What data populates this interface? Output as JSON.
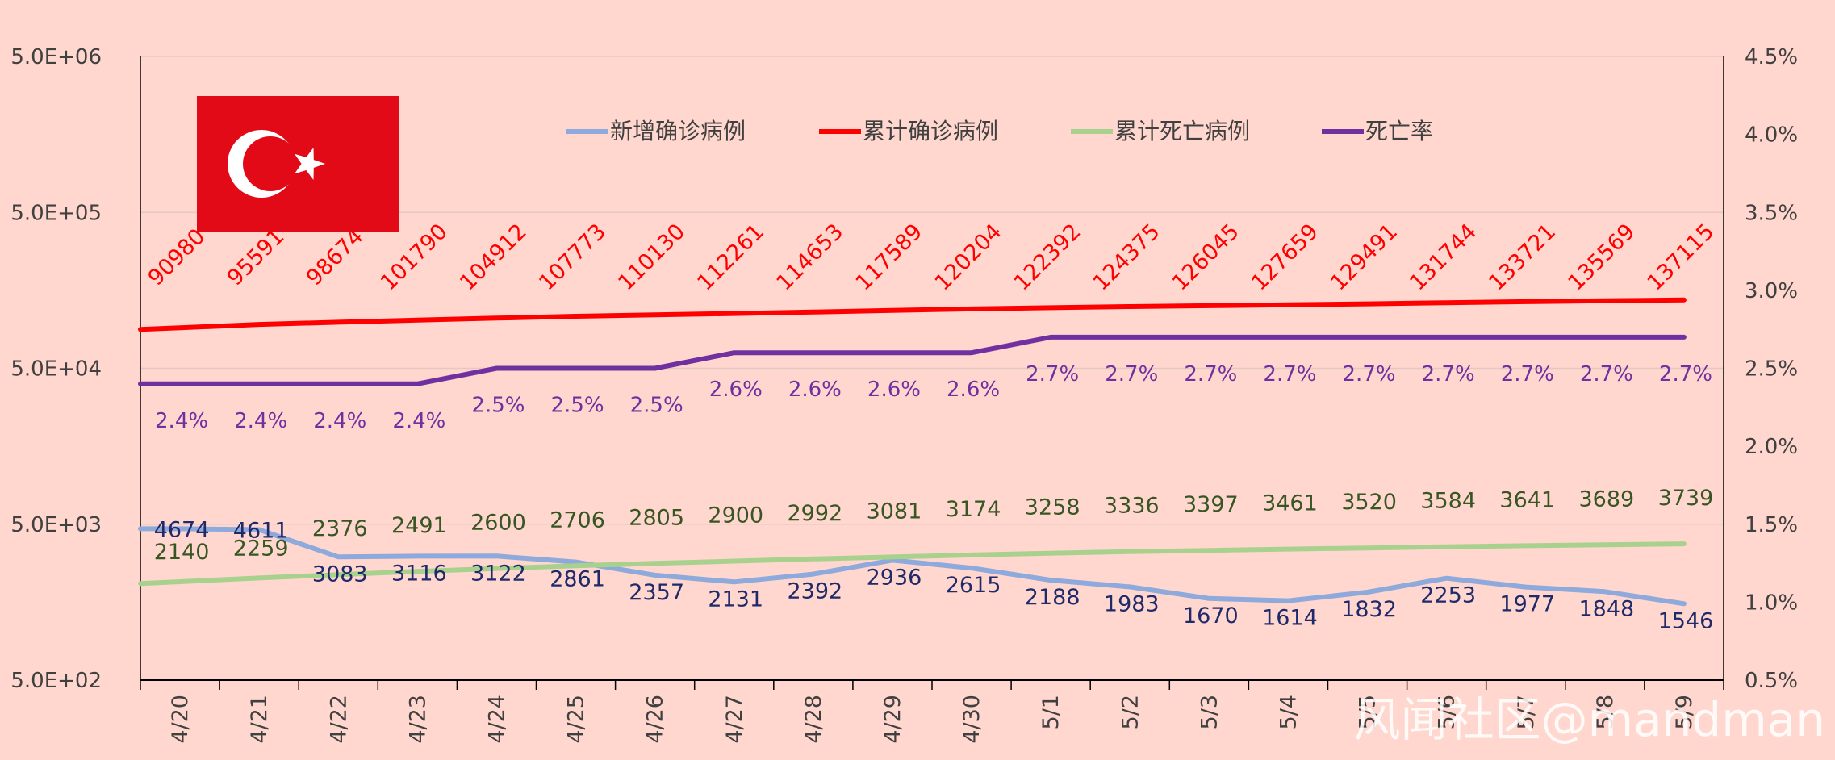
{
  "chart_data": {
    "type": "line",
    "x": [
      "4/20",
      "4/21",
      "4/22",
      "4/23",
      "4/24",
      "4/25",
      "4/26",
      "4/27",
      "4/28",
      "4/29",
      "4/30",
      "5/1",
      "5/2",
      "5/3",
      "5/4",
      "5/5",
      "5/6",
      "5/7",
      "5/8",
      "5/9"
    ],
    "y_left": {
      "scale": "log",
      "range": [
        500,
        5000000
      ],
      "ticks": [
        "5.0E+02",
        "5.0E+03",
        "5.0E+04",
        "5.0E+05",
        "5.0E+06"
      ]
    },
    "y_right": {
      "scale": "linear",
      "range": [
        0.005,
        0.045
      ],
      "ticks": [
        "0.5%",
        "1.0%",
        "1.5%",
        "2.0%",
        "2.5%",
        "3.0%",
        "3.5%",
        "4.0%",
        "4.5%"
      ]
    },
    "legend_position": "top-center",
    "series": [
      {
        "name": "新增确诊病例",
        "axis": "left",
        "color": "#8EA9DB",
        "label_color": "#1F2A6B",
        "values": [
          4674,
          4611,
          3083,
          3116,
          3122,
          2861,
          2357,
          2131,
          2392,
          2936,
          2615,
          2188,
          1983,
          1670,
          1614,
          1832,
          2253,
          1977,
          1848,
          1546
        ]
      },
      {
        "name": "累计确诊病例",
        "axis": "left",
        "color": "#FF0000",
        "label_color": "#FF0000",
        "values": [
          90980,
          95591,
          98674,
          101790,
          104912,
          107773,
          110130,
          112261,
          114653,
          117589,
          120204,
          122392,
          124375,
          126045,
          127659,
          129491,
          131744,
          133721,
          135569,
          137115
        ]
      },
      {
        "name": "累计死亡病例",
        "axis": "left",
        "color": "#A9D18E",
        "label_color": "#375623",
        "values": [
          2140,
          2259,
          2376,
          2491,
          2600,
          2706,
          2805,
          2900,
          2992,
          3081,
          3174,
          3258,
          3336,
          3397,
          3461,
          3520,
          3584,
          3641,
          3689,
          3739
        ]
      },
      {
        "name": "死亡率",
        "axis": "right",
        "color": "#7030A0",
        "label_color": "#7030A0",
        "values": [
          0.024,
          0.024,
          0.024,
          0.024,
          0.025,
          0.025,
          0.025,
          0.026,
          0.026,
          0.026,
          0.026,
          0.027,
          0.027,
          0.027,
          0.027,
          0.027,
          0.027,
          0.027,
          0.027,
          0.027
        ],
        "labels": [
          "2.4%",
          "2.4%",
          "2.4%",
          "2.4%",
          "2.5%",
          "2.5%",
          "2.5%",
          "2.6%",
          "2.6%",
          "2.6%",
          "2.6%",
          "2.7%",
          "2.7%",
          "2.7%",
          "2.7%",
          "2.7%",
          "2.7%",
          "2.7%",
          "2.7%",
          "2.7%"
        ]
      }
    ]
  },
  "watermark": "风闻社区@mandman",
  "flag": {
    "red": "#E30A17",
    "white": "#FFFFFF"
  },
  "colors": {
    "background": "#FFD7CE",
    "axis": "#000000",
    "gridline": "#E6C8C2",
    "tick_text": "#404040"
  }
}
